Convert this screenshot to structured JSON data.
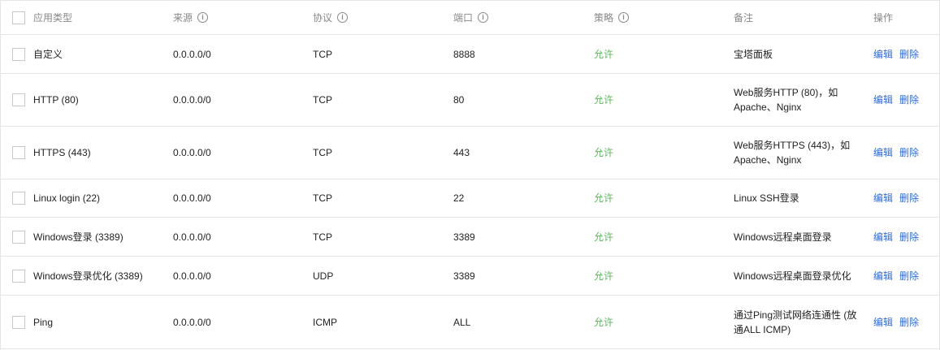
{
  "columns": {
    "type": "应用类型",
    "source": "来源",
    "protocol": "协议",
    "port": "端口",
    "policy": "策略",
    "remark": "备注",
    "action": "操作"
  },
  "info_icon": "i",
  "action_labels": {
    "edit": "编辑",
    "delete": "删除"
  },
  "rows": [
    {
      "type": "自定义",
      "source": "0.0.0.0/0",
      "protocol": "TCP",
      "port": "8888",
      "policy": "允许",
      "remark": "宝塔面板"
    },
    {
      "type": "HTTP (80)",
      "source": "0.0.0.0/0",
      "protocol": "TCP",
      "port": "80",
      "policy": "允许",
      "remark": "Web服务HTTP (80)，如Apache、Nginx"
    },
    {
      "type": "HTTPS (443)",
      "source": "0.0.0.0/0",
      "protocol": "TCP",
      "port": "443",
      "policy": "允许",
      "remark": "Web服务HTTPS (443)，如Apache、Nginx"
    },
    {
      "type": "Linux login (22)",
      "source": "0.0.0.0/0",
      "protocol": "TCP",
      "port": "22",
      "policy": "允许",
      "remark": "Linux SSH登录"
    },
    {
      "type": "Windows登录 (3389)",
      "source": "0.0.0.0/0",
      "protocol": "TCP",
      "port": "3389",
      "policy": "允许",
      "remark": "Windows远程桌面登录"
    },
    {
      "type": "Windows登录优化 (3389)",
      "source": "0.0.0.0/0",
      "protocol": "UDP",
      "port": "3389",
      "policy": "允许",
      "remark": "Windows远程桌面登录优化"
    },
    {
      "type": "Ping",
      "source": "0.0.0.0/0",
      "protocol": "ICMP",
      "port": "ALL",
      "policy": "允许",
      "remark": "通过Ping测试网络连通性 (放通ALL ICMP)"
    }
  ],
  "colors": {
    "allow": "#5cb85c",
    "link": "#2d6ce0",
    "header_text": "#888888",
    "border": "#e5e5e5"
  }
}
